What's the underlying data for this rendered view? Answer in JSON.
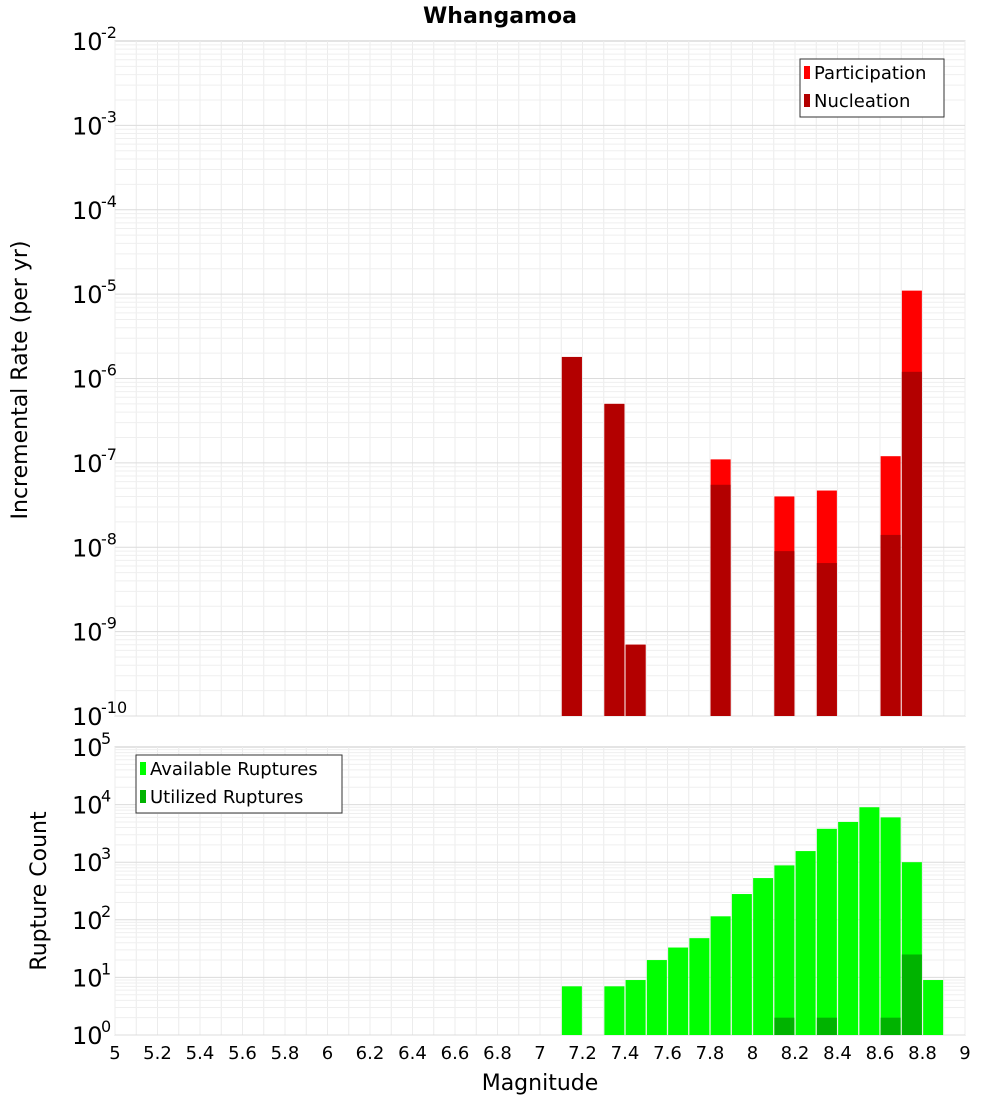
{
  "chart_data": [
    {
      "type": "bar",
      "title": "Whangamoa",
      "ylabel": "Incremental Rate (per yr)",
      "xlabel": "",
      "yscale": "log",
      "ylim_exponent": [
        -10,
        -2
      ],
      "xlim": [
        5,
        9
      ],
      "legend_placement": "top-right",
      "grid": true,
      "series": [
        {
          "name": "Participation",
          "color": "#ff0000",
          "points": [
            {
              "x": 7.15,
              "y": 1.8e-06
            },
            {
              "x": 7.35,
              "y": 5e-07
            },
            {
              "x": 7.45,
              "y": 7e-10
            },
            {
              "x": 7.85,
              "y": 1.1e-07
            },
            {
              "x": 8.15,
              "y": 4e-08
            },
            {
              "x": 8.35,
              "y": 4.7e-08
            },
            {
              "x": 8.65,
              "y": 1.2e-07
            },
            {
              "x": 8.75,
              "y": 1.1e-05
            }
          ]
        },
        {
          "name": "Nucleation",
          "color": "#b30000",
          "points": [
            {
              "x": 7.15,
              "y": 1.8e-06
            },
            {
              "x": 7.35,
              "y": 5e-07
            },
            {
              "x": 7.45,
              "y": 7e-10
            },
            {
              "x": 7.85,
              "y": 5.5e-08
            },
            {
              "x": 8.15,
              "y": 9e-09
            },
            {
              "x": 8.35,
              "y": 6.5e-09
            },
            {
              "x": 8.65,
              "y": 1.4e-08
            },
            {
              "x": 8.75,
              "y": 1.2e-06
            }
          ]
        }
      ]
    },
    {
      "type": "bar",
      "title": "",
      "ylabel": "Rupture Count",
      "xlabel": "Magnitude",
      "yscale": "log",
      "ylim_exponent": [
        0,
        5
      ],
      "xlim": [
        5,
        9
      ],
      "legend_placement": "top-left",
      "grid": true,
      "series": [
        {
          "name": "Available Ruptures",
          "color": "#00ff00",
          "points": [
            {
              "x": 7.15,
              "y": 7
            },
            {
              "x": 7.35,
              "y": 7
            },
            {
              "x": 7.45,
              "y": 9
            },
            {
              "x": 7.55,
              "y": 20
            },
            {
              "x": 7.65,
              "y": 33
            },
            {
              "x": 7.75,
              "y": 48
            },
            {
              "x": 7.85,
              "y": 115
            },
            {
              "x": 7.95,
              "y": 280
            },
            {
              "x": 8.05,
              "y": 530
            },
            {
              "x": 8.15,
              "y": 880
            },
            {
              "x": 8.25,
              "y": 1560
            },
            {
              "x": 8.35,
              "y": 3800
            },
            {
              "x": 8.45,
              "y": 5000
            },
            {
              "x": 8.55,
              "y": 9000
            },
            {
              "x": 8.65,
              "y": 6000
            },
            {
              "x": 8.75,
              "y": 1000
            },
            {
              "x": 8.85,
              "y": 9
            }
          ]
        },
        {
          "name": "Utilized Ruptures",
          "color": "#00b300",
          "points": [
            {
              "x": 7.15,
              "y": 1
            },
            {
              "x": 7.35,
              "y": 1
            },
            {
              "x": 7.45,
              "y": 1
            },
            {
              "x": 7.65,
              "y": 1
            },
            {
              "x": 7.85,
              "y": 1
            },
            {
              "x": 8.15,
              "y": 2
            },
            {
              "x": 8.35,
              "y": 2
            },
            {
              "x": 8.65,
              "y": 2
            },
            {
              "x": 8.75,
              "y": 25
            }
          ]
        }
      ]
    }
  ],
  "x_ticks": [
    "5",
    "5.2",
    "5.4",
    "5.6",
    "5.8",
    "6",
    "6.2",
    "6.4",
    "6.6",
    "6.8",
    "7",
    "7.2",
    "7.4",
    "7.6",
    "7.8",
    "8",
    "8.2",
    "8.4",
    "8.6",
    "8.8",
    "9"
  ]
}
